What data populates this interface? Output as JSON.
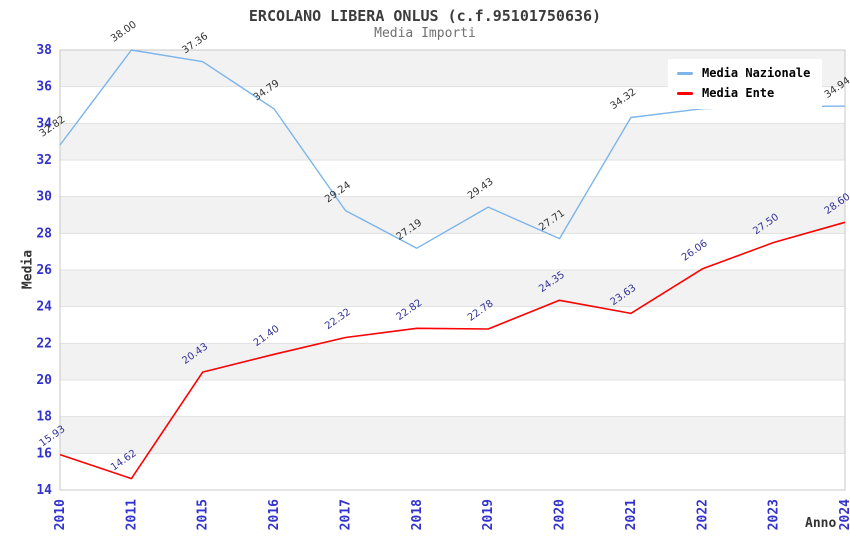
{
  "chart_data": {
    "type": "line",
    "title": "ERCOLANO LIBERA ONLUS (c.f.95101750636)",
    "subtitle": "Media Importi",
    "xlabel": "Anno",
    "ylabel": "Media",
    "categories": [
      "2010",
      "2011",
      "2015",
      "2016",
      "2017",
      "2018",
      "2019",
      "2020",
      "2021",
      "2022",
      "2023",
      "2024"
    ],
    "series": [
      {
        "name": "Media Nazionale",
        "color": "#7cb5ec",
        "label_color": "#333333",
        "values": [
          32.82,
          38.0,
          37.36,
          34.79,
          29.24,
          27.19,
          29.43,
          27.71,
          34.32,
          34.8,
          34.9,
          34.94
        ]
      },
      {
        "name": "Media Ente",
        "color": "#ff0000",
        "label_color": "#333399",
        "values": [
          15.93,
          14.62,
          20.43,
          21.4,
          22.32,
          22.82,
          22.78,
          24.35,
          23.63,
          26.06,
          27.5,
          28.6
        ]
      }
    ],
    "ylim": [
      14,
      38
    ],
    "y_tick_step": 2,
    "y_ticks": [
      14,
      16,
      18,
      20,
      22,
      24,
      26,
      28,
      30,
      32,
      34,
      36,
      38
    ],
    "grid": "horizontal-bands",
    "band_fill": "#f2f2f2",
    "gridline_color": "#e1e1e1",
    "border_color": "#c8c8c8",
    "tick_label_color": "#3333cc",
    "legend_position": "top-right"
  },
  "legend": {
    "items": [
      {
        "label": "Media Nazionale",
        "color": "#7cb5ec"
      },
      {
        "label": "Media Ente",
        "color": "#ff0000"
      }
    ]
  }
}
